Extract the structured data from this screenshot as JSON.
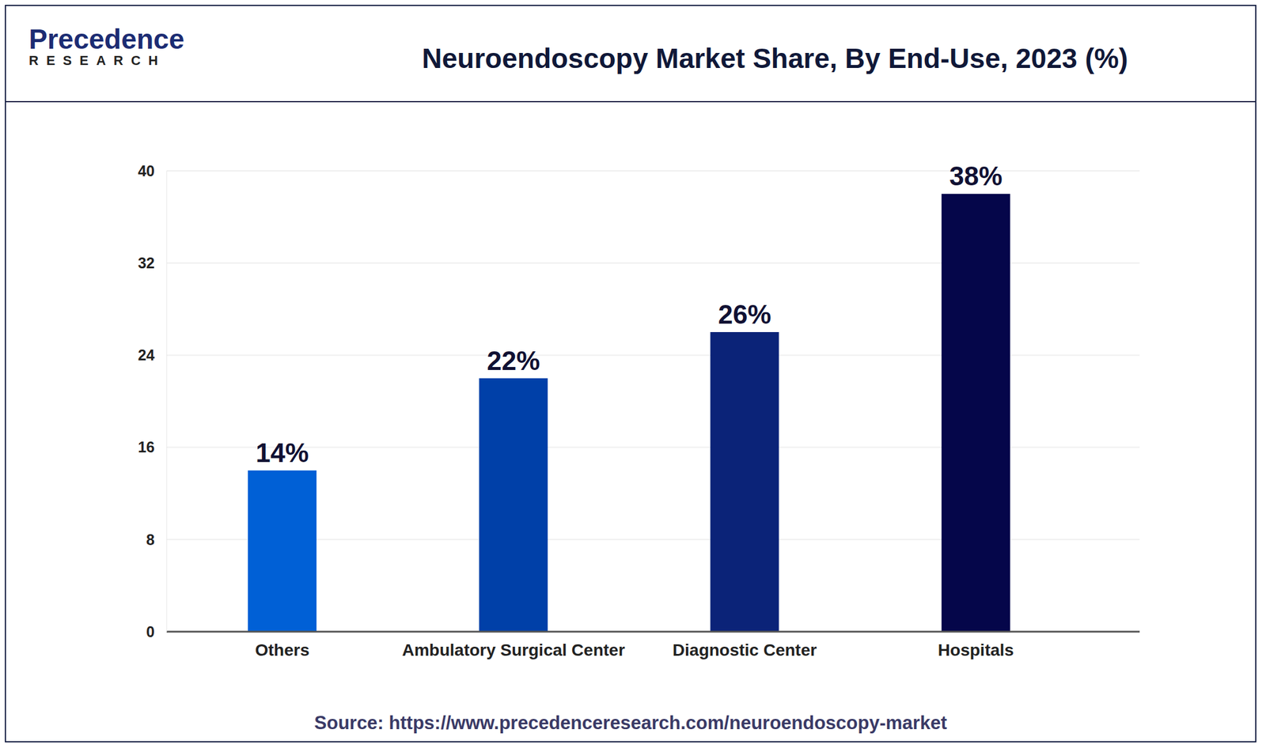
{
  "logo": {
    "name": "Precedence",
    "sub": "RESEARCH"
  },
  "chart_data": {
    "type": "bar",
    "title": "Neuroendoscopy Market Share, By End-Use, 2023 (%)",
    "categories": [
      "Others",
      "Ambulatory Surgical Center",
      "Diagnostic Center",
      "Hospitals"
    ],
    "values": [
      14,
      22,
      26,
      38
    ],
    "value_labels": [
      "14%",
      "22%",
      "26%",
      "38%"
    ],
    "colors": [
      "#0060d6",
      "#0040a8",
      "#0b2378",
      "#05064a"
    ],
    "ylim": [
      0,
      40
    ],
    "yticks": [
      0,
      8,
      16,
      24,
      32,
      40
    ],
    "grid": true,
    "data_labels": true,
    "source": "Source: https://www.precedenceresearch.com/neuroendoscopy-market"
  }
}
